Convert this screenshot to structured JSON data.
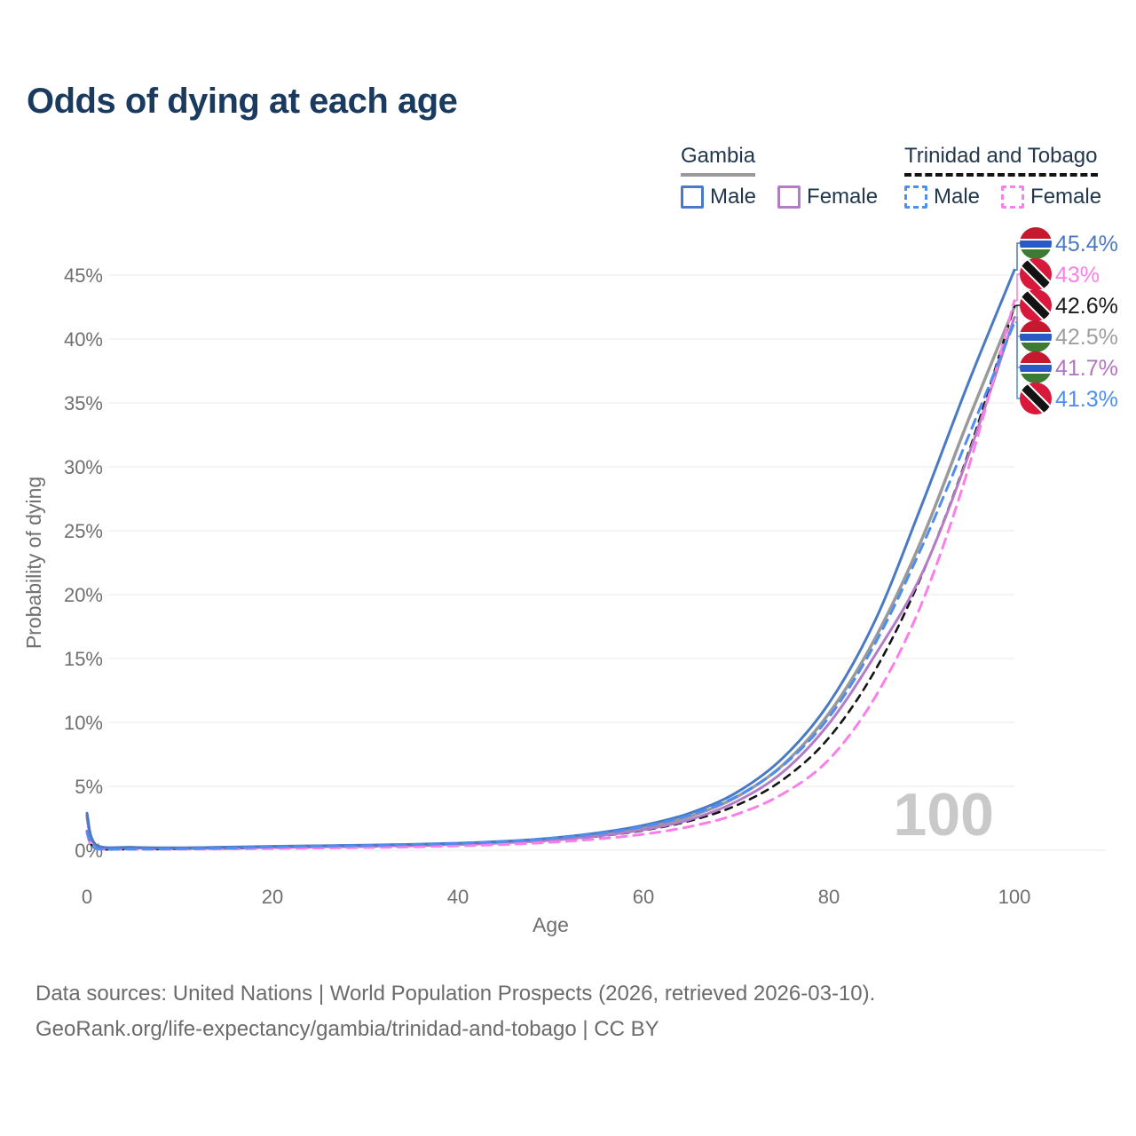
{
  "title": "Odds of dying at each age",
  "legend": {
    "groups": [
      {
        "name": "Gambia",
        "underline": "solid",
        "underline_color": "#9a9a9a",
        "items": [
          {
            "label": "Male",
            "color": "#4a79c5",
            "dashed": false
          },
          {
            "label": "Female",
            "color": "#b47cc6",
            "dashed": false
          }
        ]
      },
      {
        "name": "Trinidad and Tobago",
        "underline": "dashed",
        "underline_color": "#141414",
        "items": [
          {
            "label": "Male",
            "color": "#4d8ef0",
            "dashed": true
          },
          {
            "label": "Female",
            "color": "#fb7fe8",
            "dashed": true
          }
        ]
      }
    ]
  },
  "watermark": "100",
  "footer": {
    "line1": "Data sources: United Nations | World Population Prospects (2026, retrieved 2026-03-10).",
    "line2": "GeoRank.org/life-expectancy/gambia/trinidad-and-tobago | CC BY"
  },
  "colors": {
    "title": "#1b3a5f",
    "axis_text": "#6f6f6f",
    "grid": "#eaeaea",
    "watermark": "#c9c9c9",
    "footer_text": "#6b6b6b"
  },
  "flags": {
    "gambia": {
      "red": "#c6182f",
      "white": "#ffffff",
      "blue": "#2a5ac4",
      "green": "#3d7a33"
    },
    "trinidad_and_tobago": {
      "red": "#d8193c",
      "white": "#ffffff",
      "black": "#131313"
    }
  },
  "chart_data": {
    "type": "line",
    "title": "Odds of dying at each age",
    "xlabel": "Age",
    "ylabel": "Probability of dying",
    "xlim": [
      0,
      100
    ],
    "ylim": [
      0,
      47
    ],
    "grid": "horizontal",
    "legend_position": "top-right",
    "xticks": [
      0,
      20,
      40,
      60,
      80,
      100
    ],
    "ytick_values": [
      0,
      5,
      10,
      15,
      20,
      25,
      30,
      35,
      40,
      45
    ],
    "yticks": [
      "0%",
      "5%",
      "10%",
      "15%",
      "20%",
      "25%",
      "30%",
      "35%",
      "40%",
      "45%"
    ],
    "x": [
      0,
      1,
      5,
      10,
      15,
      20,
      25,
      30,
      35,
      40,
      45,
      50,
      55,
      60,
      65,
      70,
      75,
      80,
      85,
      90,
      95,
      100
    ],
    "series": [
      {
        "name": "Gambia Male",
        "color": "#4a79c5",
        "dash": null,
        "width": 3,
        "values": [
          2.9,
          0.4,
          0.22,
          0.18,
          0.24,
          0.3,
          0.35,
          0.4,
          0.46,
          0.55,
          0.7,
          0.95,
          1.35,
          1.95,
          2.9,
          4.5,
          7.2,
          11.5,
          18.0,
          27.0,
          36.5,
          45.4
        ]
      },
      {
        "name": "Gambia Female",
        "color": "#b47cc6",
        "dash": null,
        "width": 3,
        "values": [
          2.5,
          0.35,
          0.2,
          0.15,
          0.18,
          0.22,
          0.27,
          0.31,
          0.37,
          0.45,
          0.58,
          0.78,
          1.1,
          1.6,
          2.4,
          3.8,
          6.1,
          9.9,
          15.3,
          21.6,
          30.8,
          41.7
        ]
      },
      {
        "name": "Gambia",
        "color": "#9a9a9a",
        "dash": null,
        "width": 3.5,
        "values": [
          2.7,
          0.38,
          0.21,
          0.17,
          0.21,
          0.26,
          0.31,
          0.36,
          0.42,
          0.5,
          0.64,
          0.86,
          1.22,
          1.77,
          2.65,
          4.15,
          6.65,
          10.7,
          16.6,
          24.3,
          33.6,
          42.5
        ]
      },
      {
        "name": "Trinidad and Tobago Male",
        "color": "#4d8ef0",
        "dash": "11 8",
        "width": 3,
        "values": [
          1.5,
          0.12,
          0.09,
          0.11,
          0.17,
          0.26,
          0.32,
          0.37,
          0.44,
          0.53,
          0.68,
          0.92,
          1.28,
          1.85,
          2.75,
          4.2,
          6.6,
          10.4,
          16.2,
          23.7,
          32.3,
          41.3
        ]
      },
      {
        "name": "Trinidad and Tobago Female",
        "color": "#fb7fe8",
        "dash": "11 8",
        "width": 3,
        "values": [
          1.3,
          0.1,
          0.07,
          0.08,
          0.1,
          0.13,
          0.17,
          0.21,
          0.26,
          0.34,
          0.45,
          0.62,
          0.88,
          1.25,
          1.85,
          2.8,
          4.4,
          7.1,
          12.0,
          19.3,
          29.8,
          43.0
        ]
      },
      {
        "name": "Trinidad and Tobago",
        "color": "#141414",
        "dash": "8 7",
        "width": 2.6,
        "values": [
          1.4,
          0.11,
          0.08,
          0.1,
          0.14,
          0.2,
          0.25,
          0.29,
          0.35,
          0.44,
          0.57,
          0.77,
          1.08,
          1.55,
          2.3,
          3.5,
          5.5,
          8.8,
          14.1,
          21.5,
          31.0,
          42.6
        ]
      }
    ],
    "draw_order": [
      2,
      5,
      1,
      4,
      0,
      3
    ],
    "end_labels": [
      {
        "text": "45.4%",
        "color": "#4a79c5",
        "flag": "gambia",
        "series": "Gambia Male"
      },
      {
        "text": "43%",
        "color": "#fb7fe8",
        "flag": "trinidad_and_tobago",
        "series": "Trinidad and Tobago Female"
      },
      {
        "text": "42.6%",
        "color": "#1a1a1a",
        "flag": "trinidad_and_tobago",
        "series": "Trinidad and Tobago"
      },
      {
        "text": "42.5%",
        "color": "#9e9e9e",
        "flag": "gambia",
        "series": "Gambia"
      },
      {
        "text": "41.7%",
        "color": "#b175c1",
        "flag": "gambia",
        "series": "Gambia Female"
      },
      {
        "text": "41.3%",
        "color": "#4d8ef0",
        "flag": "trinidad_and_tobago",
        "series": "Trinidad and Tobago Male"
      }
    ]
  }
}
